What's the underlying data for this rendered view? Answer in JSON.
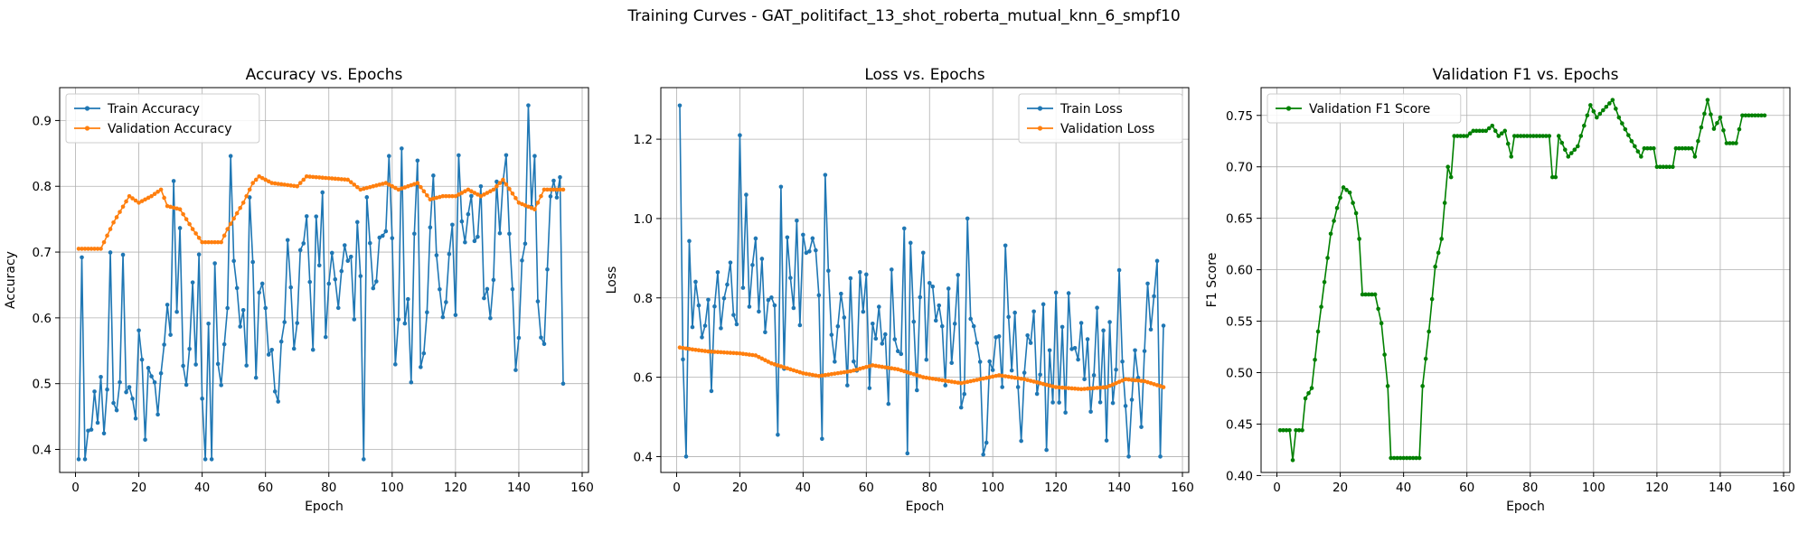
{
  "figure": {
    "suptitle": "Training Curves - GAT_politifact_13_shot_roberta_mutual_knn_6_smpf10"
  },
  "chart_data": [
    {
      "type": "line",
      "title": "Accuracy vs. Epochs",
      "xlabel": "Epoch",
      "ylabel": "Accuracy",
      "xlim": [
        -5,
        162
      ],
      "ylim": [
        0.365,
        0.95
      ],
      "xticks": [
        0,
        20,
        40,
        60,
        80,
        100,
        120,
        140,
        160
      ],
      "yticks": [
        0.4,
        0.5,
        0.6,
        0.7,
        0.8,
        0.9
      ],
      "grid": true,
      "legend": "top-left",
      "series": [
        {
          "name": "Train Accuracy",
          "color": "#1f77b4",
          "kind": "noisy",
          "seed": 11,
          "segments": [
            [
              1,
              0.385
            ],
            [
              2,
              0.69
            ],
            [
              3,
              0.46
            ],
            [
              10,
              0.52
            ],
            [
              20,
              0.55
            ],
            [
              40,
              0.57
            ],
            [
              60,
              0.62
            ],
            [
              80,
              0.65
            ],
            [
              100,
              0.66
            ],
            [
              120,
              0.68
            ],
            [
              143,
              0.7
            ],
            [
              154,
              0.72
            ]
          ],
          "amplitude": 0.12,
          "clamp": [
            0.385,
            0.923
          ],
          "points": [
            [
              1,
              0.385
            ],
            [
              2,
              0.692
            ],
            [
              49,
              0.846
            ],
            [
              99,
              0.846
            ],
            [
              143,
              0.923
            ],
            [
              144,
              0.769
            ],
            [
              145,
              0.846
            ],
            [
              154,
              0.5
            ],
            [
              91,
              0.385
            ],
            [
              43,
              0.385
            ],
            [
              31,
              0.808
            ]
          ]
        },
        {
          "name": "Validation Accuracy",
          "color": "#ff7f0e",
          "kind": "smooth",
          "segments": [
            [
              1,
              0.705
            ],
            [
              8,
              0.705
            ],
            [
              12,
              0.745
            ],
            [
              17,
              0.785
            ],
            [
              20,
              0.775
            ],
            [
              24,
              0.785
            ],
            [
              27,
              0.795
            ],
            [
              29,
              0.77
            ],
            [
              33,
              0.765
            ],
            [
              37,
              0.735
            ],
            [
              40,
              0.715
            ],
            [
              46,
              0.715
            ],
            [
              48,
              0.735
            ],
            [
              53,
              0.775
            ],
            [
              56,
              0.805
            ],
            [
              58,
              0.815
            ],
            [
              62,
              0.805
            ],
            [
              70,
              0.8
            ],
            [
              73,
              0.815
            ],
            [
              86,
              0.81
            ],
            [
              90,
              0.795
            ],
            [
              98,
              0.805
            ],
            [
              102,
              0.795
            ],
            [
              108,
              0.805
            ],
            [
              112,
              0.78
            ],
            [
              116,
              0.785
            ],
            [
              120,
              0.785
            ],
            [
              124,
              0.795
            ],
            [
              128,
              0.785
            ],
            [
              132,
              0.795
            ],
            [
              135,
              0.81
            ],
            [
              140,
              0.775
            ],
            [
              145,
              0.765
            ],
            [
              148,
              0.795
            ],
            [
              154,
              0.795
            ]
          ]
        }
      ]
    },
    {
      "type": "line",
      "title": "Loss vs. Epochs",
      "xlabel": "Epoch",
      "ylabel": "Loss",
      "xlim": [
        -5,
        162
      ],
      "ylim": [
        0.36,
        1.33
      ],
      "xticks": [
        0,
        20,
        40,
        60,
        80,
        100,
        120,
        140,
        160
      ],
      "yticks": [
        0.4,
        0.6,
        0.8,
        1.0,
        1.2
      ],
      "grid": true,
      "legend": "top-right",
      "series": [
        {
          "name": "Train Loss",
          "color": "#1f77b4",
          "kind": "noisy",
          "seed": 7,
          "segments": [
            [
              1,
              1.28
            ],
            [
              2,
              0.65
            ],
            [
              10,
              0.78
            ],
            [
              20,
              0.8
            ],
            [
              40,
              0.8
            ],
            [
              60,
              0.74
            ],
            [
              80,
              0.71
            ],
            [
              100,
              0.68
            ],
            [
              120,
              0.66
            ],
            [
              140,
              0.65
            ],
            [
              154,
              0.64
            ]
          ],
          "amplitude": 0.18,
          "clamp": [
            0.4,
            1.28
          ],
          "points": [
            [
              1,
              1.285
            ],
            [
              2,
              0.645
            ],
            [
              20,
              1.21
            ],
            [
              22,
              1.06
            ],
            [
              32,
              0.455
            ],
            [
              33,
              1.08
            ],
            [
              47,
              1.11
            ],
            [
              97,
              0.405
            ],
            [
              98,
              0.435
            ],
            [
              92,
              1.0
            ],
            [
              140,
              0.87
            ],
            [
              154,
              0.73
            ]
          ]
        },
        {
          "name": "Validation Loss",
          "color": "#ff7f0e",
          "kind": "smooth",
          "segments": [
            [
              1,
              0.675
            ],
            [
              5,
              0.67
            ],
            [
              10,
              0.665
            ],
            [
              20,
              0.66
            ],
            [
              25,
              0.655
            ],
            [
              30,
              0.635
            ],
            [
              40,
              0.61
            ],
            [
              45,
              0.603
            ],
            [
              55,
              0.615
            ],
            [
              62,
              0.63
            ],
            [
              70,
              0.62
            ],
            [
              78,
              0.6
            ],
            [
              90,
              0.585
            ],
            [
              102,
              0.605
            ],
            [
              110,
              0.595
            ],
            [
              120,
              0.575
            ],
            [
              128,
              0.57
            ],
            [
              136,
              0.575
            ],
            [
              142,
              0.595
            ],
            [
              148,
              0.59
            ],
            [
              154,
              0.575
            ]
          ]
        }
      ]
    },
    {
      "type": "line",
      "title": "Validation F1 vs. Epochs",
      "xlabel": "Epoch",
      "ylabel": "F1 Score",
      "xlim": [
        -5,
        162
      ],
      "ylim": [
        0.403,
        0.777
      ],
      "xticks": [
        0,
        20,
        40,
        60,
        80,
        100,
        120,
        140,
        160
      ],
      "yticks": [
        0.4,
        0.45,
        0.5,
        0.55,
        0.6,
        0.65,
        0.7,
        0.75
      ],
      "grid": true,
      "legend": "top-left",
      "series": [
        {
          "name": "Validation F1 Score",
          "color": "#008000",
          "kind": "smooth",
          "segments": [
            [
              1,
              0.444
            ],
            [
              4,
              0.444
            ],
            [
              5,
              0.415
            ],
            [
              6,
              0.444
            ],
            [
              8,
              0.444
            ],
            [
              9,
              0.475
            ],
            [
              11,
              0.485
            ],
            [
              13,
              0.54
            ],
            [
              15,
              0.588
            ],
            [
              17,
              0.635
            ],
            [
              19,
              0.66
            ],
            [
              21,
              0.68
            ],
            [
              23,
              0.675
            ],
            [
              25,
              0.655
            ],
            [
              26,
              0.63
            ],
            [
              27,
              0.576
            ],
            [
              31,
              0.576
            ],
            [
              33,
              0.548
            ],
            [
              35,
              0.487
            ],
            [
              36,
              0.417
            ],
            [
              45,
              0.417
            ],
            [
              46,
              0.487
            ],
            [
              48,
              0.54
            ],
            [
              50,
              0.603
            ],
            [
              52,
              0.63
            ],
            [
              54,
              0.7
            ],
            [
              55,
              0.69
            ],
            [
              56,
              0.73
            ],
            [
              60,
              0.73
            ],
            [
              62,
              0.735
            ],
            [
              66,
              0.735
            ],
            [
              68,
              0.74
            ],
            [
              70,
              0.73
            ],
            [
              72,
              0.735
            ],
            [
              74,
              0.71
            ],
            [
              75,
              0.73
            ],
            [
              86,
              0.73
            ],
            [
              87,
              0.69
            ],
            [
              88,
              0.69
            ],
            [
              89,
              0.73
            ],
            [
              92,
              0.71
            ],
            [
              95,
              0.72
            ],
            [
              98,
              0.75
            ],
            [
              99,
              0.76
            ],
            [
              101,
              0.748
            ],
            [
              103,
              0.755
            ],
            [
              106,
              0.765
            ],
            [
              108,
              0.748
            ],
            [
              112,
              0.725
            ],
            [
              115,
              0.71
            ],
            [
              116,
              0.718
            ],
            [
              119,
              0.718
            ],
            [
              120,
              0.7
            ],
            [
              125,
              0.7
            ],
            [
              126,
              0.718
            ],
            [
              131,
              0.718
            ],
            [
              132,
              0.71
            ],
            [
              133,
              0.725
            ],
            [
              136,
              0.765
            ],
            [
              138,
              0.737
            ],
            [
              140,
              0.748
            ],
            [
              142,
              0.723
            ],
            [
              145,
              0.723
            ],
            [
              147,
              0.75
            ],
            [
              154,
              0.75
            ]
          ]
        }
      ]
    }
  ]
}
